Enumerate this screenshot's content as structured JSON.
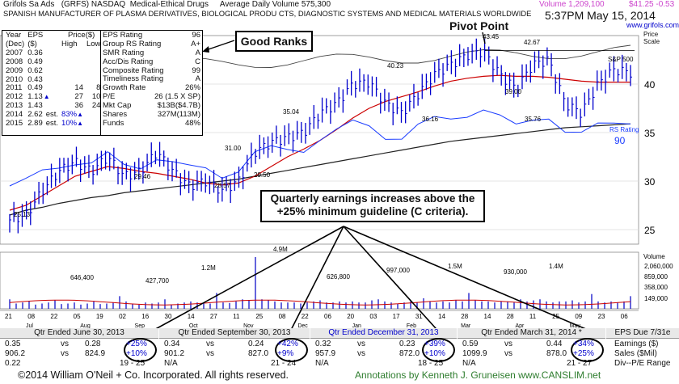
{
  "header": {
    "company": "Grifols Sa Ads",
    "ticker_exchange": "(GRFS) NASDAQ",
    "industry": "Medical-Ethical Drugs",
    "avg_volume": "Average Daily Volume 575,300",
    "description": "SPANISH MANUFACTURER OF PLASMA DERIVATIVES, BIOLOGICAL PRODU CTS, DIAGNOSTIC SYSTEMS AND MEDICAL MATERIALS WORLDWIDE",
    "volume": "Volume 1,209,100",
    "price_change": "$41.25 -0.53",
    "timestamp": "5:37PM May 15, 2014",
    "website": "www.grifols.com",
    "price_scale_label": "Price Scale"
  },
  "eps_table": {
    "header1": [
      "Year",
      "EPS",
      "Price($)"
    ],
    "header2": [
      "(Dec)",
      "($)",
      "High",
      "Low"
    ],
    "rows": [
      {
        "year": "2007",
        "eps": "0.36",
        "high": "",
        "low": "",
        "mark": ""
      },
      {
        "year": "2008",
        "eps": "0.49",
        "high": "",
        "low": "",
        "mark": ""
      },
      {
        "year": "2009",
        "eps": "0.62",
        "high": "",
        "low": "",
        "mark": ""
      },
      {
        "year": "2010",
        "eps": "0.43",
        "high": "",
        "low": "",
        "mark": ""
      },
      {
        "year": "2011",
        "eps": "0.49",
        "high": "14",
        "low": "8",
        "mark": ""
      },
      {
        "year": "2012",
        "eps": "1.13",
        "high": "27",
        "low": "10",
        "mark": "▲"
      },
      {
        "year": "2013",
        "eps": "1.43",
        "high": "36",
        "low": "24",
        "mark": ""
      },
      {
        "year": "2014",
        "eps": "2.62",
        "high": "83%",
        "low": "",
        "mark": "est."
      },
      {
        "year": "2015",
        "eps": "2.89",
        "high": "10%",
        "low": "",
        "mark": "est."
      }
    ]
  },
  "ratings": [
    {
      "label": "EPS Rating",
      "value": "96"
    },
    {
      "label": "Group RS Rating",
      "value": "A+"
    },
    {
      "label": "SMR Rating",
      "value": "A"
    },
    {
      "label": "Acc/Dis Rating",
      "value": "C"
    },
    {
      "label": "Composite Rating",
      "value": "99"
    },
    {
      "label": "Timeliness Rating",
      "value": "A"
    },
    {
      "label": "Growth Rate",
      "value": "26%"
    },
    {
      "label": "P/E",
      "value": "26 (1.5 X SP)"
    },
    {
      "label": "Mkt Cap",
      "value": "$13B($4.7B)"
    },
    {
      "label": "Shares",
      "value": "327M(113M)"
    },
    {
      "label": "Funds",
      "value": "48%"
    }
  ],
  "callouts": {
    "good_ranks": "Good Ranks",
    "pivot_point": "Pivot Point",
    "quarterly": "Quarterly earnings increases above the +25% minimum guideline (C criteria)."
  },
  "chart_data": {
    "type": "line",
    "title": "",
    "y_axis_ticks": [
      "40",
      "35",
      "30",
      "25"
    ],
    "ylim": [
      23.5,
      45
    ],
    "price_labels": [
      {
        "text": "43.45"
      },
      {
        "text": "42.67"
      },
      {
        "text": "40.23"
      },
      {
        "text": "39.00"
      },
      {
        "text": "35.04"
      },
      {
        "text": "36.16"
      },
      {
        "text": "35.76"
      },
      {
        "text": "31.00"
      },
      {
        "text": "29.46"
      },
      {
        "text": "29.50"
      },
      {
        "text": "28.57"
      },
      {
        "text": "25.13"
      }
    ],
    "series_labels": {
      "sp500": "S&P 500",
      "rs_rating": "RS Rating",
      "rs_value": "90"
    },
    "price_series": [
      26,
      26.5,
      29,
      31,
      32,
      31,
      32.5,
      30.5,
      31,
      33,
      31,
      29.5,
      30,
      29,
      30,
      33,
      34,
      34.5,
      35,
      37,
      38,
      40,
      40.2,
      38,
      37,
      39,
      41,
      42,
      43,
      43.4,
      41,
      39.5,
      42,
      42.5,
      38,
      37,
      40,
      41.5,
      41.2
    ],
    "ma50_series": [
      27,
      27.5,
      28.5,
      29.5,
      30.5,
      31,
      31.5,
      31.3,
      31,
      30.8,
      30.5,
      30.2,
      29.8,
      29.6,
      29.8,
      30.5,
      31.5,
      32.5,
      33.3,
      34.2,
      35.3,
      36.5,
      37.5,
      38.2,
      38.7,
      39.2,
      39.8,
      40.3,
      40.6,
      40.8,
      40.9,
      40.8,
      40.8,
      40.7,
      40.5,
      40.3,
      40.2,
      40.2,
      40.2
    ],
    "ma200_series": [
      26.5,
      27,
      27.3,
      27.7,
      28.0,
      28.3,
      28.5,
      28.8,
      29.0,
      29.2,
      29.4,
      29.6,
      29.8,
      30.0,
      30.2,
      30.5,
      30.8,
      31.1,
      31.4,
      31.7,
      32.0,
      32.3,
      32.6,
      32.9,
      33.2,
      33.5,
      33.8,
      34.1,
      34.3,
      34.5,
      34.7,
      34.9,
      35.1,
      35.3,
      35.5,
      35.6,
      35.7,
      35.8,
      35.9
    ],
    "volume_axis": {
      "label": "Volume",
      "ticks": [
        "2,060,000",
        "859,000",
        "358,000",
        "149,000"
      ]
    },
    "volume_labels": [
      "4.9M",
      "646,400",
      "427,700",
      "1.2M",
      "626,800",
      "997,000",
      "1.5M",
      "930,000",
      "1.4M"
    ],
    "volume_values": [
      0.9,
      0.5,
      0.6,
      0.7,
      0.4,
      0.5,
      0.6,
      0.8,
      0.45,
      0.5,
      0.6,
      0.4,
      0.5,
      0.7,
      0.45,
      0.5,
      0.6,
      1.2,
      0.7,
      0.5,
      0.4,
      0.6,
      0.5,
      0.6,
      0.9,
      0.4,
      0.5,
      0.6,
      0.7,
      0.6,
      0.5,
      0.5,
      1.5,
      0.6,
      0.55,
      0.7,
      0.9,
      0.8,
      4.9,
      0.9,
      0.8,
      0.7,
      0.6,
      0.6,
      0.6,
      0.5,
      0.6,
      0.7,
      0.8,
      0.6,
      0.6,
      0.7,
      0.6,
      0.7,
      0.6,
      0.6,
      0.8,
      0.9,
      0.7,
      0.6,
      0.5,
      0.6,
      0.7,
      0.6,
      1.0,
      0.7,
      0.6,
      0.7,
      0.6,
      0.8,
      0.7,
      1.5,
      0.8,
      0.7,
      0.7,
      0.6,
      0.7,
      0.7,
      0.6,
      0.9,
      0.7,
      0.8,
      0.9,
      0.7,
      0.6,
      0.7,
      0.7,
      0.8,
      0.6,
      0.7,
      1.4,
      0.7,
      0.6,
      0.7,
      0.6,
      0.7,
      1.2
    ],
    "date_ticks": [
      "21",
      "08",
      "22",
      "05",
      "19",
      "02",
      "16",
      "30",
      "14",
      "27",
      "11",
      "25",
      "08",
      "22",
      "06",
      "20",
      "03",
      "17",
      "31",
      "14",
      "28",
      "14",
      "28",
      "11",
      "25",
      "09",
      "23",
      "06"
    ],
    "month_labels": [
      "Jul",
      "Aug",
      "Sep",
      "Oct",
      "Nov",
      "Dec",
      "Jan",
      "Feb",
      "Mar",
      "Apr",
      "May"
    ]
  },
  "quarters": [
    {
      "title": "Qtr Ended June 30, 2013",
      "eps": "0.35",
      "eps_prev": "0.28",
      "eps_pct": "+25%",
      "sales": "906.2",
      "sales_prev": "824.9",
      "sales_pct": "+10%",
      "pe1": "0.22",
      "pe2": "19 - 25"
    },
    {
      "title": "Qtr Ended September 30, 2013",
      "eps": "0.34",
      "eps_prev": "0.24",
      "eps_pct": "+42%",
      "sales": "901.2",
      "sales_prev": "827.0",
      "sales_pct": "+9%",
      "pe1": "N/A",
      "pe2": "21 - 24"
    },
    {
      "title": "Qtr Ended December 31, 2013",
      "eps": "0.32",
      "eps_prev": "0.23",
      "eps_pct": "+39%",
      "sales": "957.9",
      "sales_prev": "872.0",
      "sales_pct": "+10%",
      "pe1": "N/A",
      "pe2": "18 - 25"
    },
    {
      "title": "Qtr Ended March 31, 2014 *",
      "eps": "0.59",
      "eps_prev": "0.44",
      "eps_pct": "+34%",
      "sales": "1099.9",
      "sales_prev": "878.0",
      "sales_pct": "+25%",
      "pe1": "N/A",
      "pe2": "21 - 27"
    }
  ],
  "eps_due": {
    "title": "EPS Due 7/31e",
    "line1": "Earnings ($)",
    "line2": "Sales ($Mil)",
    "line3": "Div--P/E Range",
    "vs": "vs"
  },
  "footer": {
    "copyright": "©2014 William O'Neil + Co. Incorporated. All rights reserved.",
    "annotations": "Annotations by Kenneth J. Gruneisen www.CANSLIM.net"
  },
  "colors": {
    "price": "#0000cc",
    "ma50": "#cc0000",
    "ma200": "#222222",
    "sp500": "#444444",
    "rs": "#1a3cff",
    "volume": "#2222cc",
    "highlight": "#0000cc",
    "footer_green": "#2e7d2e"
  }
}
